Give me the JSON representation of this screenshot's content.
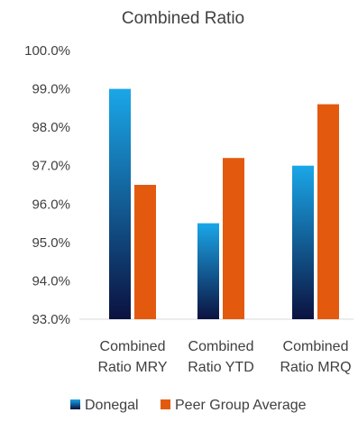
{
  "chart_data": {
    "type": "bar",
    "title": "Combined Ratio",
    "categories": [
      [
        "Combined",
        "Ratio MRY"
      ],
      [
        "Combined",
        "Ratio YTD"
      ],
      [
        "Combined",
        "Ratio MRQ"
      ]
    ],
    "series": [
      {
        "name": "Donegal",
        "values": [
          99.0,
          95.5,
          97.0
        ],
        "color_top": "#1aa7e8",
        "color_bottom": "#0b1240"
      },
      {
        "name": "Peer Group Average",
        "values": [
          96.5,
          97.2,
          98.6
        ],
        "color": "#e35a0e"
      }
    ],
    "ylim": [
      93.0,
      100.0
    ],
    "yticks": [
      93.0,
      94.0,
      95.0,
      96.0,
      97.0,
      98.0,
      99.0,
      100.0
    ],
    "ytick_labels": [
      "93.0%",
      "94.0%",
      "95.0%",
      "96.0%",
      "97.0%",
      "98.0%",
      "99.0%",
      "100.0%"
    ],
    "grid": false,
    "legend_position": "bottom",
    "xlabel": "",
    "ylabel": ""
  }
}
